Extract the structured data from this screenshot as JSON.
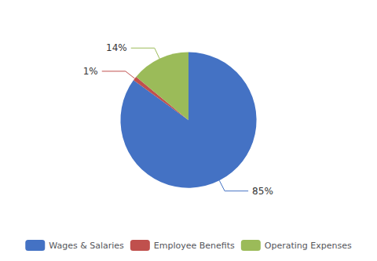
{
  "chart_data": {
    "type": "pie",
    "categories": [
      "Wages & Salaries",
      "Employee Benefits",
      "Operating Expenses"
    ],
    "values": [
      85,
      1,
      14
    ],
    "value_labels": [
      "85%",
      "1%",
      "14%"
    ],
    "colors": [
      "#4472C4",
      "#C0504D",
      "#9BBB59"
    ],
    "data_labels": true,
    "legend": "bottom"
  }
}
